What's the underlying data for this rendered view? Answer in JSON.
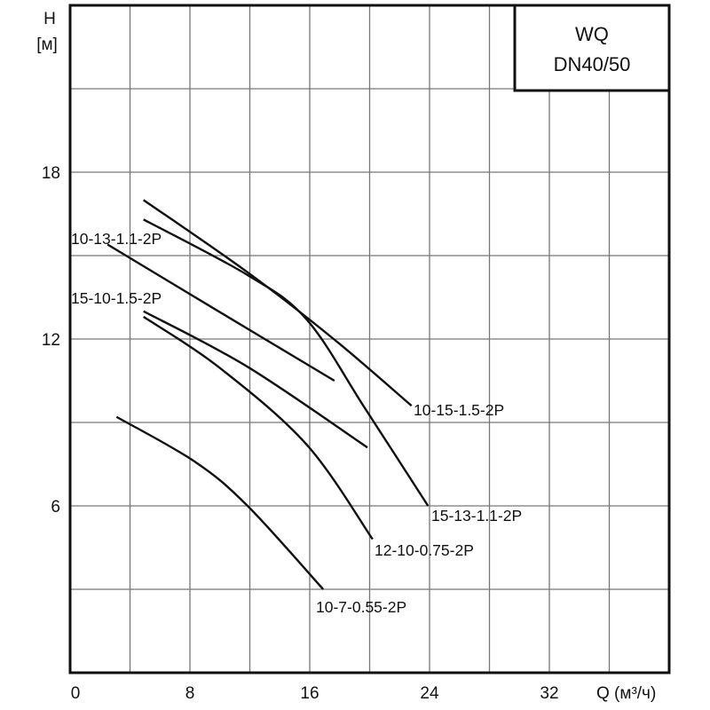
{
  "chart_data": {
    "type": "line",
    "title_box": [
      "WQ",
      "DN40/50"
    ],
    "ylabel": [
      "H",
      "[м]"
    ],
    "xlabel": "Q (м³/ч)",
    "xlim": [
      0,
      40
    ],
    "ylim": [
      0,
      24
    ],
    "xticks": [
      0,
      8,
      16,
      24,
      32
    ],
    "yticks": [
      6,
      12,
      18
    ],
    "grid": true,
    "series": [
      {
        "name": "10-15-1.5-2P",
        "x": [
          4.9,
          11.85,
          17.6,
          22.8
        ],
        "y": [
          17.0,
          14.4,
          12.0,
          9.6
        ]
      },
      {
        "name": "15-13-1.1-2P",
        "x": [
          4.9,
          11.85,
          15.8,
          19.7,
          23.9
        ],
        "y": [
          16.3,
          14.3,
          12.7,
          9.5,
          6.0
        ]
      },
      {
        "name": "10-13-1.1-2P",
        "x": [
          2.5,
          9.9,
          17.65
        ],
        "y": [
          15.4,
          13.0,
          10.5
        ]
      },
      {
        "name": "15-10-1.5-2P",
        "x": [
          4.9,
          11.85,
          19.85
        ],
        "y": [
          13.0,
          11.0,
          8.1
        ]
      },
      {
        "name": "12-10-0.75-2P",
        "x": [
          4.9,
          9.9,
          15.8,
          20.2
        ],
        "y": [
          12.8,
          11.0,
          8.2,
          4.8
        ]
      },
      {
        "name": "10-7-0.55-2P",
        "x": [
          3.1,
          8.3,
          11.85,
          16.9
        ],
        "y": [
          9.2,
          7.6,
          6.0,
          3.0
        ]
      }
    ]
  }
}
